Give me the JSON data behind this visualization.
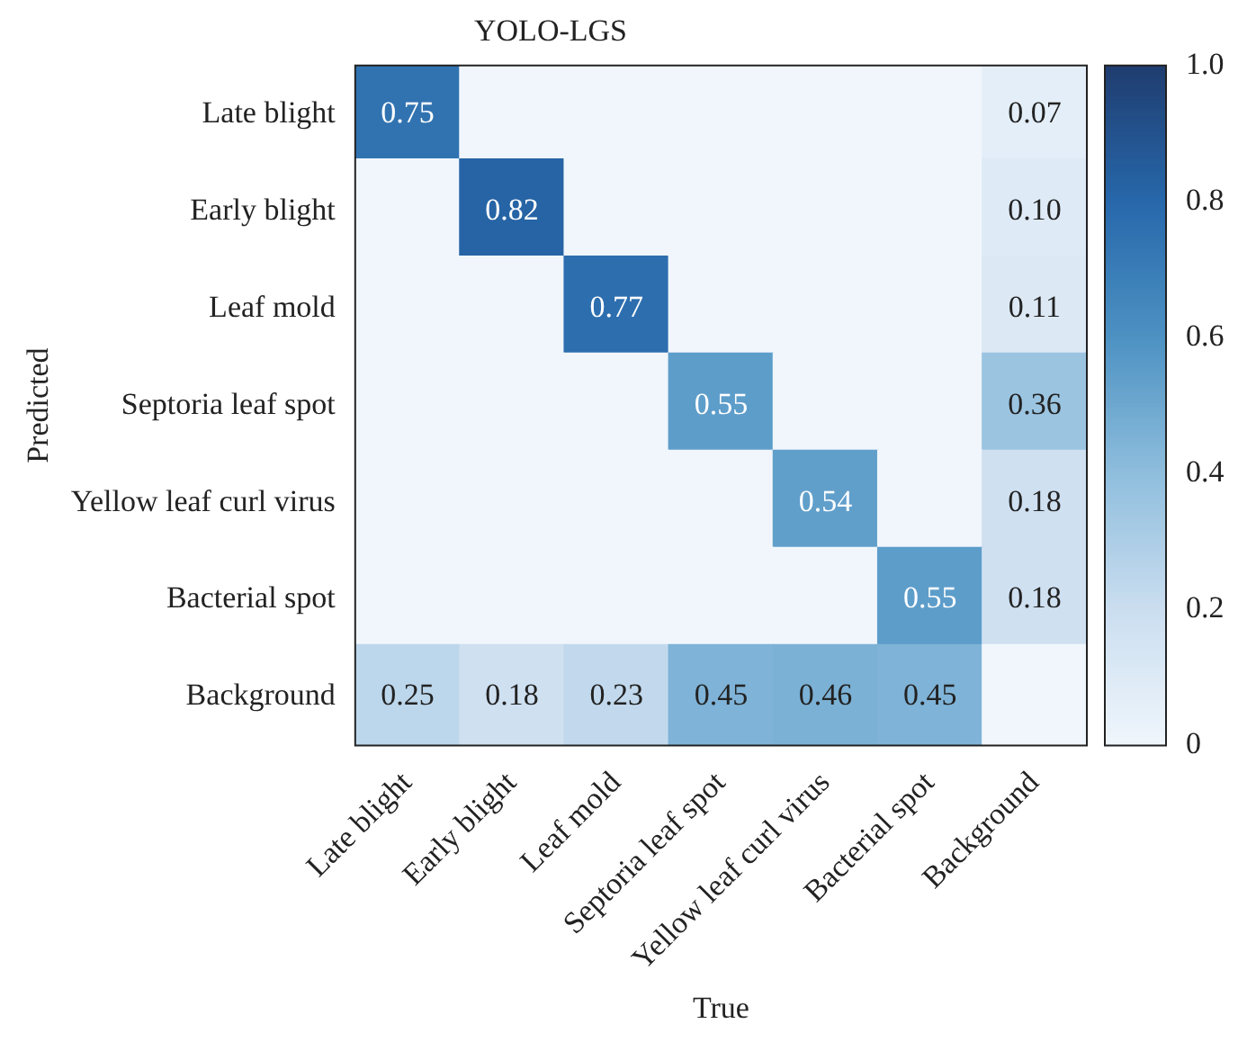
{
  "chart_data": {
    "type": "heatmap",
    "title": "YOLO-LGS",
    "xlabel": "True",
    "ylabel": "Predicted",
    "categories": [
      "Late blight",
      "Early blight",
      "Leaf mold",
      "Septoria leaf spot",
      "Yellow leaf curl virus",
      "Bacterial spot",
      "Background"
    ],
    "y_categories": [
      "Late blight",
      "Early blight",
      "Leaf mold",
      "Septoria leaf spot",
      "Yellow leaf curl virus",
      "Bacterial spot",
      "Background"
    ],
    "cells": [
      [
        0.75,
        0,
        0,
        0,
        0,
        0,
        0.07
      ],
      [
        0,
        0.82,
        0,
        0,
        0,
        0,
        0.1
      ],
      [
        0,
        0,
        0.77,
        0,
        0,
        0,
        0.11
      ],
      [
        0,
        0,
        0,
        0.55,
        0,
        0,
        0.36
      ],
      [
        0,
        0,
        0,
        0,
        0.54,
        0,
        0.18
      ],
      [
        0,
        0,
        0,
        0,
        0,
        0.55,
        0.18
      ],
      [
        0.25,
        0.18,
        0.23,
        0.45,
        0.46,
        0.45,
        0
      ]
    ],
    "cell_labels": [
      [
        "0.75",
        null,
        null,
        null,
        null,
        null,
        "0.07"
      ],
      [
        null,
        "0.82",
        null,
        null,
        null,
        null,
        "0.10"
      ],
      [
        null,
        null,
        "0.77",
        null,
        null,
        null,
        "0.11"
      ],
      [
        null,
        null,
        null,
        "0.55",
        null,
        null,
        "0.36"
      ],
      [
        null,
        null,
        null,
        null,
        "0.54",
        null,
        "0.18"
      ],
      [
        null,
        null,
        null,
        null,
        null,
        "0.55",
        "0.18"
      ],
      [
        "0.25",
        "0.18",
        "0.23",
        "0.45",
        "0.46",
        "0.45",
        null
      ]
    ],
    "clim": [
      0,
      1
    ],
    "cticks": [
      0,
      0.2,
      0.4,
      0.6,
      0.8,
      {
        "value": 1,
        "label": "1.0"
      }
    ]
  }
}
